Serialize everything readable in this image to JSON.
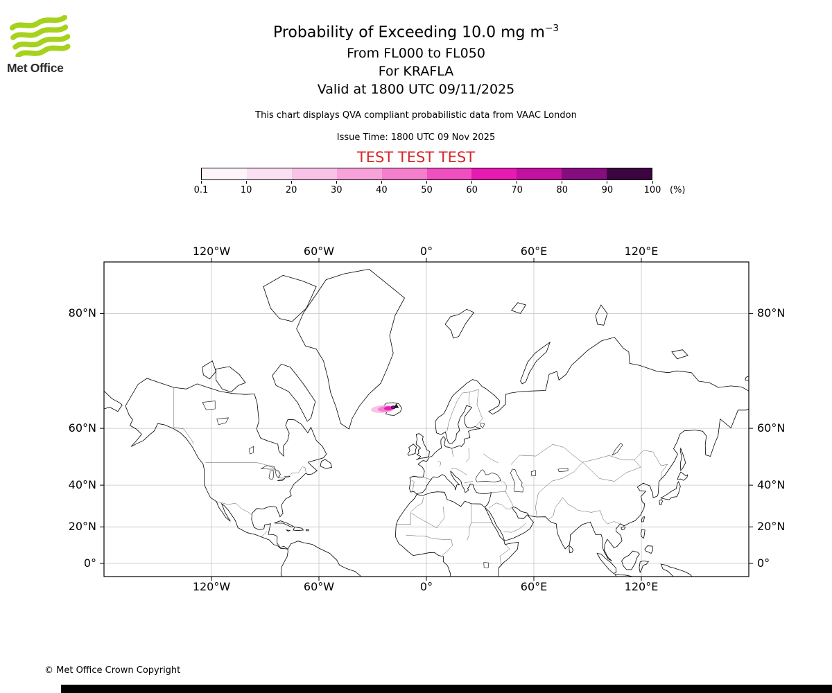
{
  "header": {
    "logo_text": "Met Office",
    "brand_green": "#a6d21b",
    "title_main": "Probability of Exceeding 10.0 mg m",
    "title_sup": "−3",
    "subtitle1": "From FL000 to FL050",
    "subtitle2": "For KRAFLA",
    "subtitle3": "Valid at 1800 UTC 09/11/2025",
    "description": "This chart displays QVA compliant probabilistic data from VAAC London",
    "issue_time": "Issue Time: 1800 UTC 09 Nov 2025",
    "test_banner": "TEST TEST TEST",
    "test_color": "#d62728"
  },
  "colorbar": {
    "tick_labels": [
      "0.1",
      "10",
      "20",
      "30",
      "40",
      "50",
      "60",
      "70",
      "80",
      "90",
      "100"
    ],
    "unit_label": "(%)",
    "segment_colors": [
      "#fdf5fa",
      "#fbdff2",
      "#f9c2e7",
      "#f7a3da",
      "#f47fcd",
      "#f04fc0",
      "#e61bb1",
      "#c111a0",
      "#860d7e",
      "#3c0540"
    ]
  },
  "map": {
    "projection": "mercator",
    "lon_ticks_deg": [
      -120,
      -60,
      0,
      60,
      120
    ],
    "lon_tick_labels": [
      "120°W",
      "60°W",
      "0°",
      "60°E",
      "120°E"
    ],
    "lat_ticks_deg": [
      80,
      60,
      40,
      20,
      0
    ],
    "lat_tick_labels": [
      "80°N",
      "60°N",
      "40°N",
      "20°N",
      "0°"
    ],
    "ash_cloud": {
      "outer_color": "#f9c2e7",
      "mid_color": "#f47fcd",
      "core_color": "#ea1cb8",
      "max_color": "#8a0c82",
      "max_outline": "#3c0540"
    }
  },
  "footer": {
    "copyright": "© Met Office Crown Copyright"
  }
}
